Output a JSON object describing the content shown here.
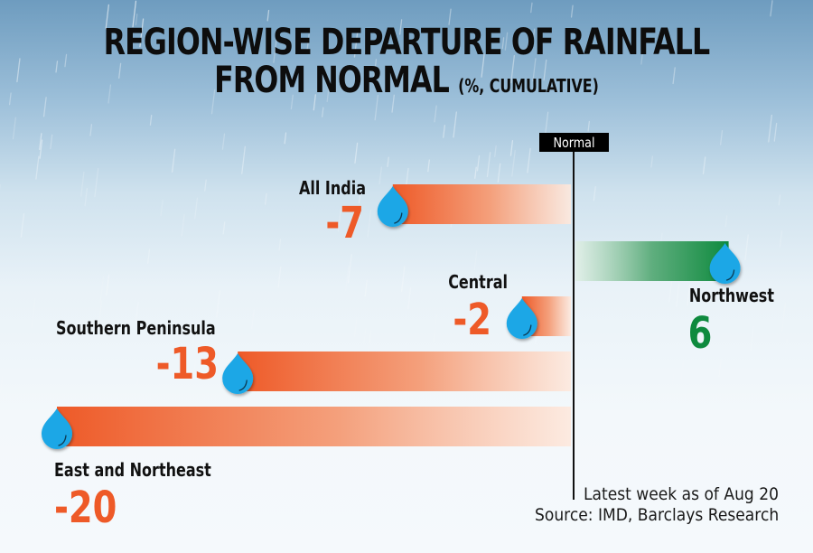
{
  "title": {
    "line1": "REGION-WISE DEPARTURE OF RAINFALL",
    "line2": "FROM NORMAL",
    "unit": "(%, CUMULATIVE)"
  },
  "chart_data": {
    "type": "bar",
    "orientation": "horizontal",
    "title": "Region-wise departure of rainfall from normal (%, cumulative)",
    "xlabel": "",
    "ylabel": "",
    "baseline_label": "Normal",
    "baseline_value": 0,
    "xlim": [
      -20,
      6
    ],
    "grid": false,
    "categories": [
      "All India",
      "Northwest",
      "Central",
      "Southern Peninsula",
      "East and Northeast"
    ],
    "values": [
      -7,
      6,
      -2,
      -13,
      -20
    ],
    "value_labels": [
      "-7",
      "6",
      "-2",
      "-13",
      "-20"
    ],
    "colors": {
      "negative": "#ee5a28",
      "positive": "#0e8a3e",
      "drop": "#1aa7e6"
    }
  },
  "footer": {
    "note": "Latest week as of Aug 20",
    "source": "Source: IMD, Barclays Research"
  }
}
